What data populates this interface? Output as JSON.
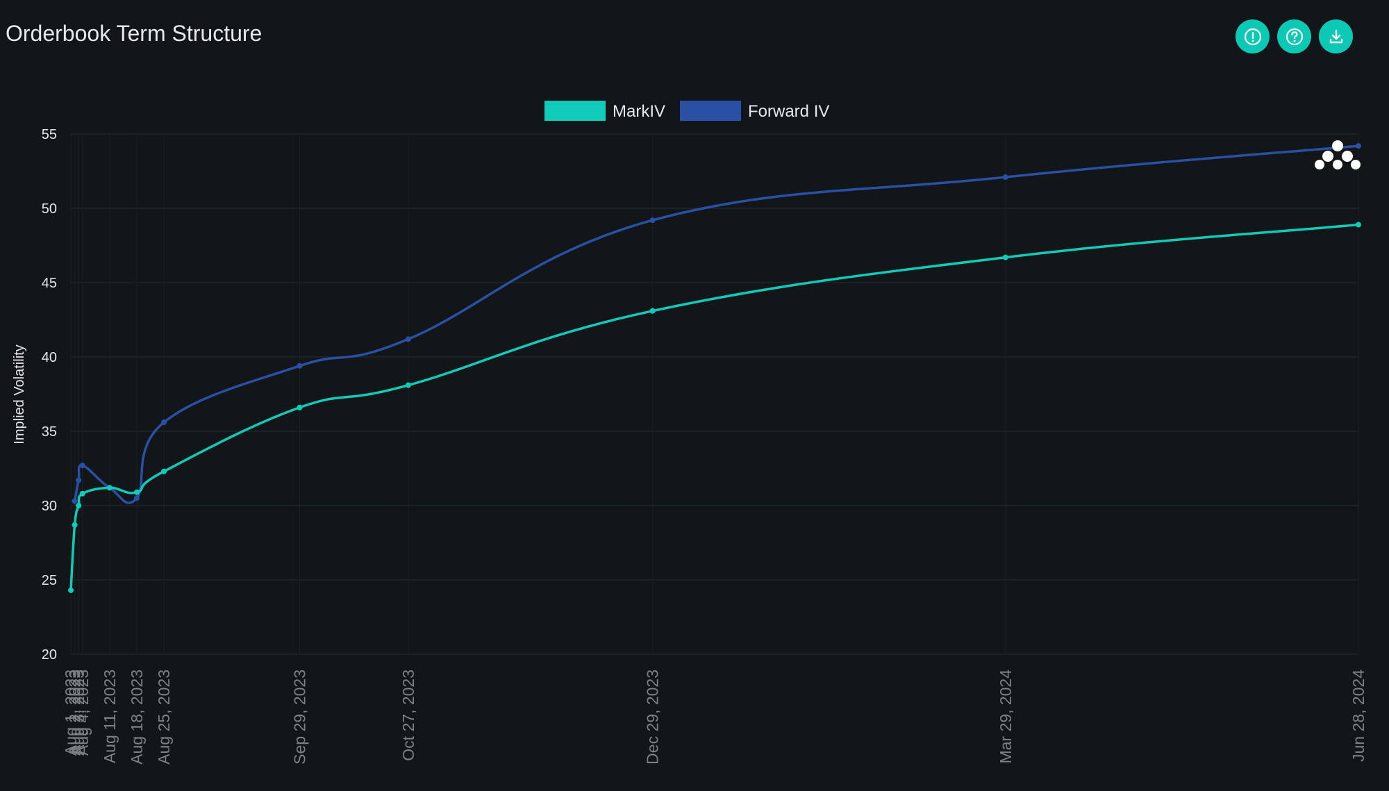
{
  "header": {
    "title": "Orderbook Term Structure",
    "buttons": [
      {
        "name": "alert-button",
        "icon": "exclamation-circle-icon"
      },
      {
        "name": "help-button",
        "icon": "question-circle-icon"
      },
      {
        "name": "download-button",
        "icon": "download-icon"
      }
    ]
  },
  "colors": {
    "background": "#131619",
    "accent": "#0bc9b5",
    "markiv": "#0fcbb8",
    "forward": "#2a50a6",
    "grid": "#1b2f39"
  },
  "chart_data": {
    "type": "line",
    "title": "",
    "xlabel": "",
    "ylabel": "Implied Volatility",
    "ylim": [
      20,
      55
    ],
    "yticks": [
      20,
      25,
      30,
      35,
      40,
      45,
      50,
      55
    ],
    "legend": "top-center",
    "x_days": [
      0,
      1,
      2,
      3,
      10,
      17,
      24,
      59,
      87,
      150,
      241,
      332
    ],
    "tick_labels": [
      "Aug 1, 2023",
      "Aug 2, 2023",
      "Aug 3, 2023",
      "Aug 4, 2023",
      "Aug 11, 2023",
      "Aug 18, 2023",
      "Aug 25, 2023",
      "Sep 29, 2023",
      "Oct 27, 2023",
      "Dec 29, 2023",
      "Mar 29, 2024",
      "Jun 28, 2024"
    ],
    "series": [
      {
        "name": "MarkIV",
        "values": [
          24.3,
          28.7,
          30.0,
          30.8,
          31.2,
          30.9,
          32.3,
          36.6,
          38.1,
          43.1,
          46.7,
          48.9
        ]
      },
      {
        "name": "Forward IV",
        "values": [
          null,
          30.3,
          31.7,
          32.7,
          31.2,
          30.5,
          35.6,
          39.4,
          41.2,
          49.2,
          52.1,
          54.2
        ]
      }
    ]
  }
}
